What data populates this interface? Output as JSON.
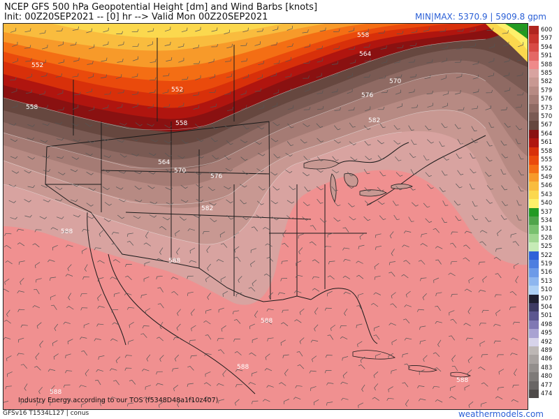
{
  "header": {
    "title": "NCEP GFS 500 hPa Geopotential Height [dm] and Wind Barbs [knots]",
    "init": "Init: 00Z20SEP2021 -- [0] hr --> Valid Mon 00Z20SEP2021",
    "minmax": "MIN|MAX: 5370.9 | 5909.8 gpm"
  },
  "footer": {
    "model": "GFSv16 T1534L127 | conus",
    "site": "weathermodels.com",
    "attribution": "Industry Energy according to our TOS (f5348D48a1f10z407)"
  },
  "colorbar": [
    {
      "label": "600",
      "color": "#b0251f"
    },
    {
      "label": "597",
      "color": "#c8342c"
    },
    {
      "label": "594",
      "color": "#d84a44"
    },
    {
      "label": "591",
      "color": "#e46865"
    },
    {
      "label": "588",
      "color": "#ef8a8a"
    },
    {
      "label": "585",
      "color": "#d8a3a0"
    },
    {
      "label": "582",
      "color": "#c89892"
    },
    {
      "label": "579",
      "color": "#b78a83"
    },
    {
      "label": "576",
      "color": "#a57b74"
    },
    {
      "label": "573",
      "color": "#8f6a63"
    },
    {
      "label": "570",
      "color": "#7a5a53"
    },
    {
      "label": "567",
      "color": "#66473f"
    },
    {
      "label": "564",
      "color": "#8a1111"
    },
    {
      "label": "561",
      "color": "#b0150f"
    },
    {
      "label": "558",
      "color": "#d8300a"
    },
    {
      "label": "555",
      "color": "#ea4a0c"
    },
    {
      "label": "552",
      "color": "#f46e14"
    },
    {
      "label": "549",
      "color": "#f79a2a"
    },
    {
      "label": "546",
      "color": "#f9bc3e"
    },
    {
      "label": "543",
      "color": "#fbd84e"
    },
    {
      "label": "540",
      "color": "#fdf06a"
    },
    {
      "label": "537",
      "color": "#229a22"
    },
    {
      "label": "534",
      "color": "#4fa44a"
    },
    {
      "label": "531",
      "color": "#78c06e"
    },
    {
      "label": "528",
      "color": "#9fd690"
    },
    {
      "label": "525",
      "color": "#c6ebb6"
    },
    {
      "label": "522",
      "color": "#2f62d8"
    },
    {
      "label": "519",
      "color": "#4d7ee0"
    },
    {
      "label": "516",
      "color": "#6d9ae8"
    },
    {
      "label": "513",
      "color": "#8eb6ef"
    },
    {
      "label": "510",
      "color": "#aed0f5"
    },
    {
      "label": "507",
      "color": "#1e1e30"
    },
    {
      "label": "504",
      "color": "#3d3a63"
    },
    {
      "label": "501",
      "color": "#5c5790"
    },
    {
      "label": "498",
      "color": "#8078b4"
    },
    {
      "label": "495",
      "color": "#a9a2d2"
    },
    {
      "label": "492",
      "color": "#d7d3ea"
    },
    {
      "label": "489",
      "color": "#bdb7b5"
    },
    {
      "label": "486",
      "color": "#a8a2a0"
    },
    {
      "label": "483",
      "color": "#938e8c"
    },
    {
      "label": "480",
      "color": "#7e7a78"
    },
    {
      "label": "477",
      "color": "#696564"
    },
    {
      "label": "474",
      "color": "#4e4a49"
    }
  ],
  "contour_labels": [
    "552",
    "558",
    "552",
    "558",
    "564",
    "570",
    "576",
    "582",
    "558",
    "564",
    "570",
    "576",
    "582",
    "588",
    "588",
    "588",
    "588",
    "588",
    "588"
  ],
  "colors": {
    "h588": "#f09090",
    "h585": "#d8a3a0",
    "h582": "#c89892",
    "h579": "#b78a83",
    "h576": "#a57b74",
    "h573": "#8f6a63",
    "h570": "#7a5a53",
    "h567": "#66473f",
    "h564": "#8a1111",
    "h561": "#b0150f",
    "h558": "#d8300a",
    "h555": "#ea4a0c",
    "h552": "#f46e14",
    "h549": "#f79a2a",
    "h546": "#f9bc3e"
  }
}
